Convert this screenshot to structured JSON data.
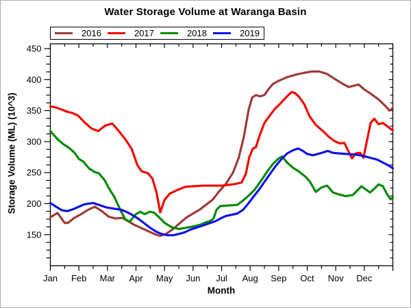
{
  "chart_data": {
    "type": "line",
    "title": "Water Storage Volume at Waranga Basin",
    "xlabel": "Month",
    "ylabel": "Storage Volume (ML) (10^3)",
    "x_categories": [
      "Jan",
      "Feb",
      "Mar",
      "Apr",
      "May",
      "Jun",
      "Jul",
      "Aug",
      "Sep",
      "Oct",
      "Nov",
      "Dec"
    ],
    "y_ticks_major": [
      450,
      400,
      350,
      300,
      250,
      200,
      150
    ],
    "y_minor_step": 12.5,
    "ylim": [
      100,
      457
    ],
    "xlim_months": [
      0,
      12
    ],
    "grid": false,
    "legend_position": "top-left",
    "x_unit": "month fraction (0 = Jan 1, 12 = Dec 31)",
    "values_unit": "ML x 10^3",
    "series": [
      {
        "name": "2016",
        "color": "#9E3B38",
        "points": [
          [
            0,
            178
          ],
          [
            0.25,
            185
          ],
          [
            0.5,
            169
          ],
          [
            0.62,
            169
          ],
          [
            0.84,
            177
          ],
          [
            1.08,
            183
          ],
          [
            1.32,
            190
          ],
          [
            1.56,
            195
          ],
          [
            1.8,
            188
          ],
          [
            2.04,
            179
          ],
          [
            2.28,
            176
          ],
          [
            2.52,
            177
          ],
          [
            2.71,
            172
          ],
          [
            2.93,
            166
          ],
          [
            3.17,
            161
          ],
          [
            3.41,
            156
          ],
          [
            3.65,
            151
          ],
          [
            3.85,
            148
          ],
          [
            4.05,
            151
          ],
          [
            4.3,
            159
          ],
          [
            4.55,
            169
          ],
          [
            4.75,
            177
          ],
          [
            5.0,
            184
          ],
          [
            5.25,
            191
          ],
          [
            5.45,
            198
          ],
          [
            5.7,
            207
          ],
          [
            5.9,
            219
          ],
          [
            6.15,
            232
          ],
          [
            6.4,
            250
          ],
          [
            6.6,
            274
          ],
          [
            6.78,
            308
          ],
          [
            6.95,
            352
          ],
          [
            7.07,
            371
          ],
          [
            7.2,
            375
          ],
          [
            7.35,
            373
          ],
          [
            7.5,
            375
          ],
          [
            7.65,
            385
          ],
          [
            7.8,
            393
          ],
          [
            8.0,
            398
          ],
          [
            8.3,
            404
          ],
          [
            8.6,
            408
          ],
          [
            8.9,
            411
          ],
          [
            9.15,
            413
          ],
          [
            9.42,
            413
          ],
          [
            9.7,
            409
          ],
          [
            10.0,
            400
          ],
          [
            10.25,
            393
          ],
          [
            10.45,
            388
          ],
          [
            10.62,
            390
          ],
          [
            10.8,
            392
          ],
          [
            11.0,
            384
          ],
          [
            11.2,
            378
          ],
          [
            11.5,
            368
          ],
          [
            11.75,
            357
          ],
          [
            11.88,
            350
          ],
          [
            12,
            354
          ]
        ]
      },
      {
        "name": "2017",
        "color": "#F20800",
        "points": [
          [
            0,
            357
          ],
          [
            0.2,
            355
          ],
          [
            0.38,
            352
          ],
          [
            0.6,
            348
          ],
          [
            0.78,
            346
          ],
          [
            0.97,
            342
          ],
          [
            1.2,
            331
          ],
          [
            1.45,
            321
          ],
          [
            1.68,
            317
          ],
          [
            1.93,
            326
          ],
          [
            2.17,
            329
          ],
          [
            2.4,
            317
          ],
          [
            2.64,
            303
          ],
          [
            2.85,
            288
          ],
          [
            3.05,
            262
          ],
          [
            3.2,
            252
          ],
          [
            3.42,
            249
          ],
          [
            3.58,
            240
          ],
          [
            3.72,
            218
          ],
          [
            3.85,
            186
          ],
          [
            4.0,
            206
          ],
          [
            4.18,
            216
          ],
          [
            4.45,
            222
          ],
          [
            4.72,
            227
          ],
          [
            5.0,
            228
          ],
          [
            5.35,
            229
          ],
          [
            5.7,
            229
          ],
          [
            6.0,
            229
          ],
          [
            6.4,
            231
          ],
          [
            6.7,
            234
          ],
          [
            6.85,
            248
          ],
          [
            6.97,
            275
          ],
          [
            7.1,
            289
          ],
          [
            7.2,
            291
          ],
          [
            7.35,
            312
          ],
          [
            7.5,
            330
          ],
          [
            7.67,
            341
          ],
          [
            7.85,
            352
          ],
          [
            8.05,
            361
          ],
          [
            8.25,
            371
          ],
          [
            8.45,
            380
          ],
          [
            8.58,
            378
          ],
          [
            8.72,
            372
          ],
          [
            8.9,
            360
          ],
          [
            9.08,
            341
          ],
          [
            9.3,
            327
          ],
          [
            9.55,
            317
          ],
          [
            9.75,
            308
          ],
          [
            9.95,
            301
          ],
          [
            10.15,
            297
          ],
          [
            10.3,
            298
          ],
          [
            10.45,
            284
          ],
          [
            10.57,
            273
          ],
          [
            10.7,
            281
          ],
          [
            10.85,
            282
          ],
          [
            10.97,
            274
          ],
          [
            11.1,
            303
          ],
          [
            11.22,
            330
          ],
          [
            11.35,
            337
          ],
          [
            11.5,
            328
          ],
          [
            11.65,
            330
          ],
          [
            11.8,
            325
          ],
          [
            12,
            318
          ]
        ]
      },
      {
        "name": "2018",
        "color": "#088A08",
        "points": [
          [
            0,
            317
          ],
          [
            0.25,
            304
          ],
          [
            0.45,
            296
          ],
          [
            0.65,
            290
          ],
          [
            0.85,
            282
          ],
          [
            1.0,
            272
          ],
          [
            1.15,
            268
          ],
          [
            1.35,
            257
          ],
          [
            1.55,
            251
          ],
          [
            1.7,
            249
          ],
          [
            1.9,
            238
          ],
          [
            2.05,
            225
          ],
          [
            2.25,
            210
          ],
          [
            2.45,
            190
          ],
          [
            2.62,
            175
          ],
          [
            2.78,
            171
          ],
          [
            3.0,
            183
          ],
          [
            3.15,
            187
          ],
          [
            3.3,
            183
          ],
          [
            3.5,
            187
          ],
          [
            3.65,
            185
          ],
          [
            3.85,
            176
          ],
          [
            4.0,
            169
          ],
          [
            4.25,
            162
          ],
          [
            4.5,
            159
          ],
          [
            4.75,
            161
          ],
          [
            5.0,
            163
          ],
          [
            5.25,
            166
          ],
          [
            5.45,
            170
          ],
          [
            5.6,
            172
          ],
          [
            5.72,
            176
          ],
          [
            5.82,
            190
          ],
          [
            5.95,
            196
          ],
          [
            6.25,
            197
          ],
          [
            6.55,
            198
          ],
          [
            6.75,
            205
          ],
          [
            6.95,
            213
          ],
          [
            7.15,
            222
          ],
          [
            7.4,
            238
          ],
          [
            7.6,
            252
          ],
          [
            7.8,
            264
          ],
          [
            8.0,
            273
          ],
          [
            8.12,
            276
          ],
          [
            8.3,
            266
          ],
          [
            8.5,
            258
          ],
          [
            8.7,
            252
          ],
          [
            8.95,
            243
          ],
          [
            9.1,
            235
          ],
          [
            9.3,
            219
          ],
          [
            9.5,
            226
          ],
          [
            9.7,
            229
          ],
          [
            9.9,
            218
          ],
          [
            10.1,
            215
          ],
          [
            10.35,
            212
          ],
          [
            10.6,
            214
          ],
          [
            10.9,
            228
          ],
          [
            11.05,
            223
          ],
          [
            11.2,
            218
          ],
          [
            11.35,
            224
          ],
          [
            11.5,
            231
          ],
          [
            11.65,
            228
          ],
          [
            11.8,
            215
          ],
          [
            11.92,
            207
          ],
          [
            12,
            210
          ]
        ]
      },
      {
        "name": "2019",
        "color": "#1010E8",
        "points": [
          [
            0,
            201
          ],
          [
            0.2,
            195
          ],
          [
            0.42,
            189
          ],
          [
            0.6,
            188
          ],
          [
            0.8,
            191
          ],
          [
            1.0,
            195
          ],
          [
            1.2,
            199
          ],
          [
            1.5,
            201
          ],
          [
            1.7,
            198
          ],
          [
            1.95,
            194
          ],
          [
            2.2,
            192
          ],
          [
            2.5,
            190
          ],
          [
            2.7,
            186
          ],
          [
            2.9,
            181
          ],
          [
            3.1,
            175
          ],
          [
            3.3,
            168
          ],
          [
            3.5,
            161
          ],
          [
            3.7,
            155
          ],
          [
            3.9,
            151
          ],
          [
            4.1,
            149
          ],
          [
            4.3,
            149
          ],
          [
            4.5,
            151
          ],
          [
            4.72,
            154
          ],
          [
            4.9,
            158
          ],
          [
            5.1,
            161
          ],
          [
            5.3,
            164
          ],
          [
            5.55,
            168
          ],
          [
            5.8,
            172
          ],
          [
            6.0,
            177
          ],
          [
            6.15,
            180
          ],
          [
            6.35,
            182
          ],
          [
            6.55,
            184
          ],
          [
            6.75,
            190
          ],
          [
            6.95,
            201
          ],
          [
            7.1,
            210
          ],
          [
            7.3,
            222
          ],
          [
            7.5,
            235
          ],
          [
            7.7,
            248
          ],
          [
            7.9,
            261
          ],
          [
            8.1,
            272
          ],
          [
            8.3,
            281
          ],
          [
            8.5,
            286
          ],
          [
            8.68,
            289
          ],
          [
            8.85,
            285
          ],
          [
            9.0,
            280
          ],
          [
            9.2,
            278
          ],
          [
            9.45,
            281
          ],
          [
            9.72,
            285
          ],
          [
            9.9,
            282
          ],
          [
            10.1,
            281
          ],
          [
            10.4,
            280
          ],
          [
            10.7,
            279
          ],
          [
            10.95,
            277
          ],
          [
            11.2,
            274
          ],
          [
            11.45,
            271
          ],
          [
            11.7,
            265
          ],
          [
            11.87,
            261
          ],
          [
            12,
            257
          ]
        ]
      }
    ]
  }
}
